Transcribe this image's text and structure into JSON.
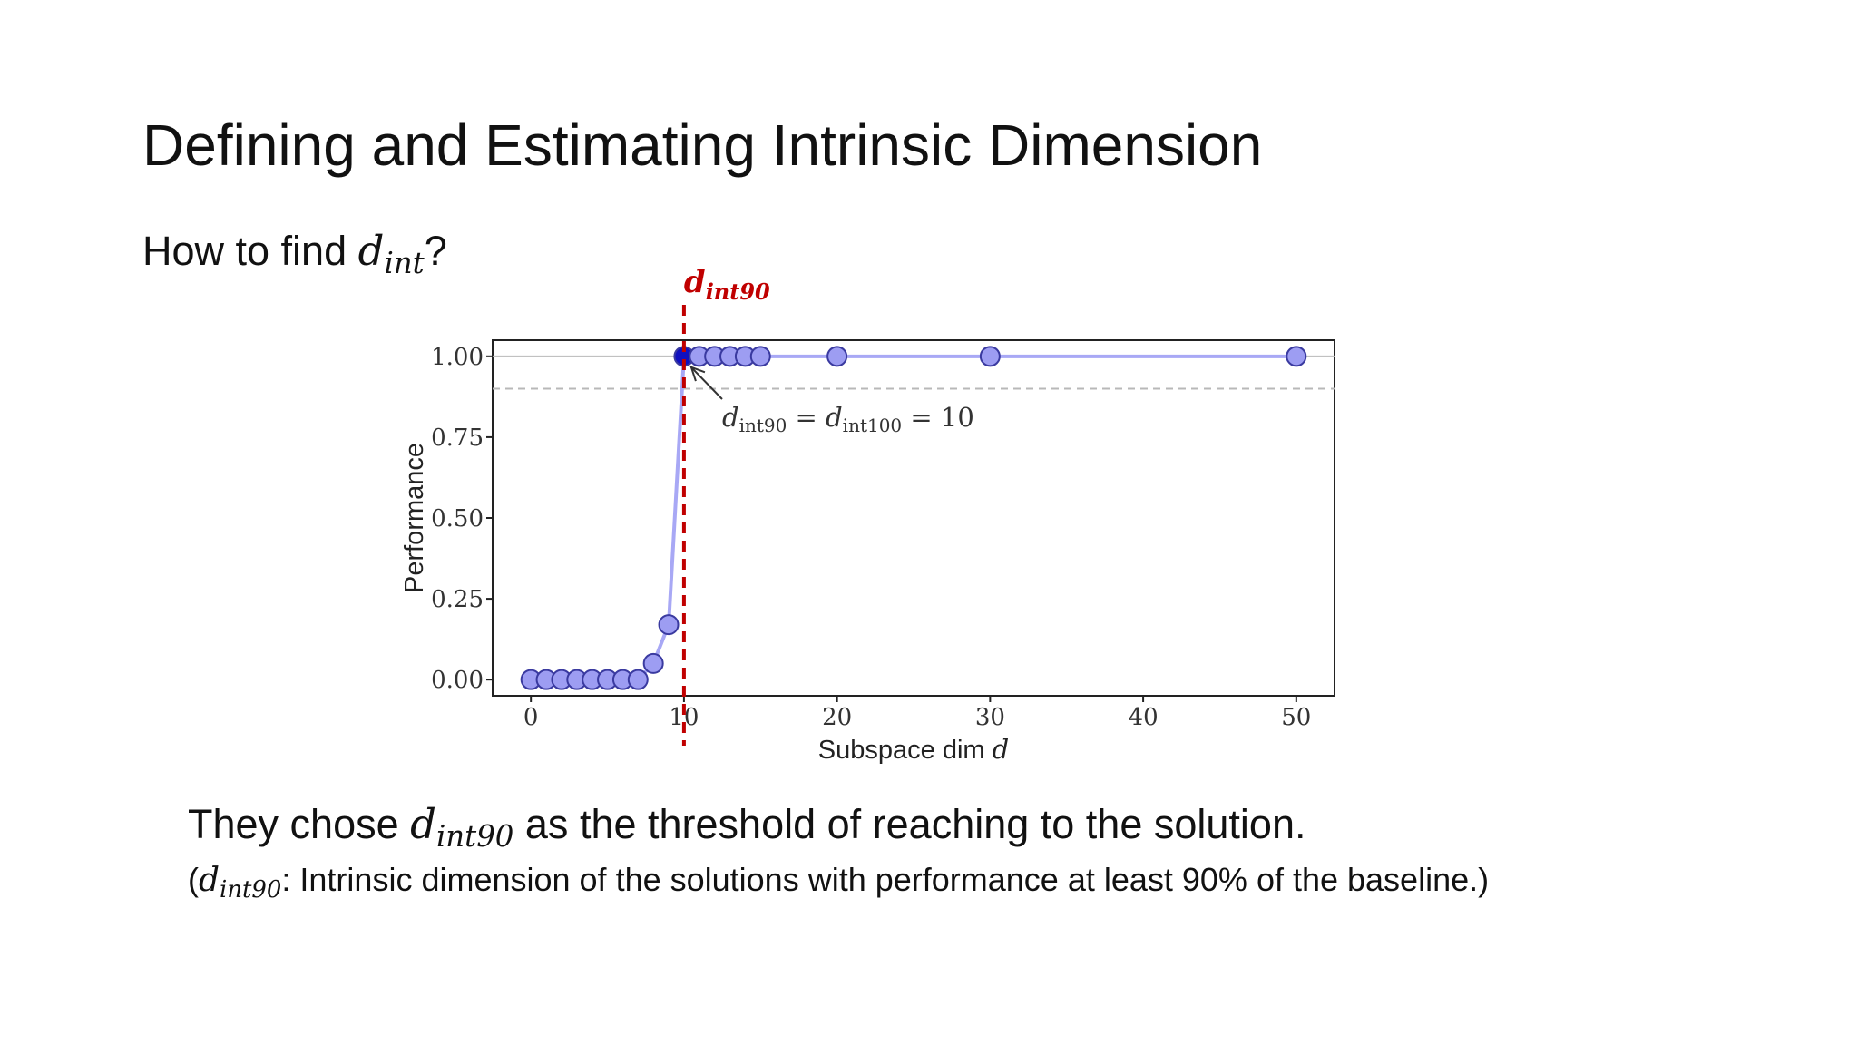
{
  "slide": {
    "title": "Defining and Estimating Intrinsic Dimension",
    "question_prefix": "How to find ",
    "question_var": "d",
    "question_sub": "int",
    "question_suffix": "?",
    "line1_prefix": "They chose ",
    "line1_var": "d",
    "line1_sub": "int90",
    "line1_suffix": " as the threshold of reaching to the solution.",
    "line2_open": "(",
    "line2_var": "d",
    "line2_sub": "int90",
    "line2_suffix": ": Intrinsic dimension of the solutions with performance at least 90% of the baseline.)"
  },
  "chart_data": {
    "type": "line",
    "xlabel": "Subspace dim",
    "xlabel_var": "d",
    "ylabel": "Performance",
    "xlim": [
      -2.5,
      52.5
    ],
    "ylim": [
      -0.05,
      1.05
    ],
    "xticks": [
      0,
      10,
      20,
      30,
      40,
      50
    ],
    "yticks": [
      0.0,
      0.25,
      0.5,
      0.75,
      1.0
    ],
    "ytick_labels": [
      "0.00",
      "0.25",
      "0.50",
      "0.75",
      "1.00"
    ],
    "xtick_labels": [
      "0",
      "10",
      "20",
      "30",
      "40",
      "50"
    ],
    "series": [
      {
        "x": [
          0,
          1,
          2,
          3,
          4,
          5,
          6,
          7,
          8,
          9,
          10,
          11,
          12,
          13,
          14,
          15,
          20,
          30,
          50
        ],
        "y": [
          0.0,
          0.0,
          0.0,
          0.0,
          0.0,
          0.0,
          0.0,
          0.0,
          0.05,
          0.17,
          1.0,
          1.0,
          1.0,
          1.0,
          1.0,
          1.0,
          1.0,
          1.0,
          1.0
        ],
        "color": "#9d9df2",
        "line_color": "#a8a8f5",
        "edge_color": "#3a3aa0",
        "highlight_index": 10,
        "highlight_color": "#1010c0"
      }
    ],
    "reference_lines": [
      {
        "y": 1.0,
        "style": "solid",
        "color": "#b8b8b8"
      },
      {
        "y": 0.9,
        "style": "dashed",
        "color": "#b8b8b8"
      }
    ],
    "vertical_marker": {
      "x": 10,
      "color": "#c00000",
      "label_var": "d",
      "label_sub": "int90"
    },
    "annotation": {
      "var1": "d",
      "sub1": "int90",
      "equals": " = ",
      "var2": "d",
      "sub2": "int100",
      "tail": " = 10",
      "points_to_x": 10,
      "points_to_y": 1.0
    },
    "grid": false,
    "legend": "none"
  }
}
